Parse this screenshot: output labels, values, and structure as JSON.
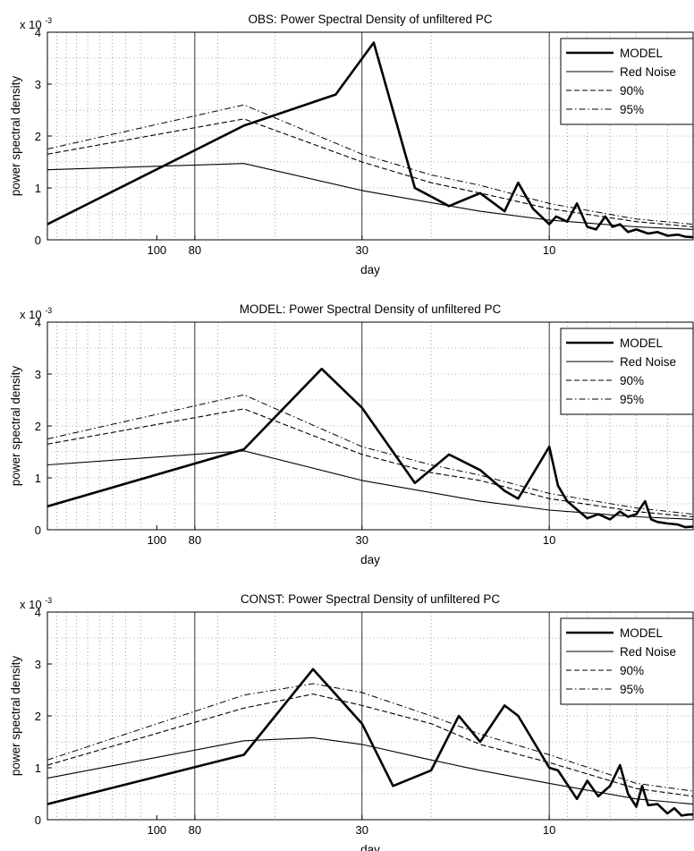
{
  "chart_data": [
    {
      "type": "line",
      "title": "OBS: Power Spectral Density of unfiltered PC",
      "xlabel": "day",
      "ylabel": "power spectral density",
      "y_multiplier": "x 10",
      "y_multiplier_exp": "-3",
      "x_scale": "log frequency (axis labeled in day)",
      "x_range_day": [
        190,
        4.3
      ],
      "ylim": [
        0,
        4
      ],
      "yticks": [
        "0",
        "1",
        "2",
        "3",
        "4"
      ],
      "xticks": [
        {
          "day": 100,
          "label": "100"
        },
        {
          "day": 80,
          "label": "80"
        },
        {
          "day": 30,
          "label": "30"
        },
        {
          "day": 10,
          "label": "10"
        }
      ],
      "grid": true,
      "legend": {
        "location": "top-right",
        "entries": [
          "MODEL",
          "Red Noise",
          "90%",
          "95%"
        ]
      },
      "series": [
        {
          "name": "MODEL",
          "style": "thick-solid",
          "x": [
            190,
            60,
            35,
            28,
            22,
            18,
            15,
            13,
            12,
            11,
            10,
            9.6,
            9,
            8.5,
            8,
            7.6,
            7.2,
            6.9,
            6.6,
            6.3,
            6,
            5.6,
            5.3,
            5,
            4.7,
            4.5,
            4.3
          ],
          "y": [
            0.3,
            2.2,
            2.8,
            3.8,
            1.0,
            0.65,
            0.9,
            0.55,
            1.1,
            0.6,
            0.3,
            0.45,
            0.35,
            0.7,
            0.25,
            0.2,
            0.45,
            0.25,
            0.3,
            0.15,
            0.2,
            0.12,
            0.15,
            0.08,
            0.1,
            0.06,
            0.05
          ]
        },
        {
          "name": "Red Noise",
          "style": "thin-solid",
          "x": [
            190,
            60,
            30,
            15,
            10,
            6,
            4.3
          ],
          "y": [
            1.35,
            1.47,
            0.95,
            0.55,
            0.38,
            0.25,
            0.2
          ]
        },
        {
          "name": "90%",
          "style": "dashed",
          "x": [
            190,
            60,
            30,
            20,
            15,
            10,
            6,
            4.3
          ],
          "y": [
            1.65,
            2.33,
            1.5,
            1.1,
            0.9,
            0.6,
            0.35,
            0.25
          ]
        },
        {
          "name": "95%",
          "style": "dash-dot",
          "x": [
            190,
            60,
            30,
            20,
            15,
            10,
            6,
            4.3
          ],
          "y": [
            1.75,
            2.6,
            1.65,
            1.25,
            1.05,
            0.7,
            0.4,
            0.3
          ]
        }
      ]
    },
    {
      "type": "line",
      "title": "MODEL: Power Spectral Density of unfiltered PC",
      "xlabel": "day",
      "ylabel": "power spectral density",
      "y_multiplier": "x 10",
      "y_multiplier_exp": "-3",
      "x_scale": "log frequency (axis labeled in day)",
      "x_range_day": [
        190,
        4.3
      ],
      "ylim": [
        0,
        4
      ],
      "yticks": [
        "0",
        "1",
        "2",
        "3",
        "4"
      ],
      "xticks": [
        {
          "day": 100,
          "label": "100"
        },
        {
          "day": 80,
          "label": "80"
        },
        {
          "day": 30,
          "label": "30"
        },
        {
          "day": 10,
          "label": "10"
        }
      ],
      "grid": true,
      "legend": {
        "location": "top-right",
        "entries": [
          "MODEL",
          "Red Noise",
          "90%",
          "95%"
        ]
      },
      "series": [
        {
          "name": "MODEL",
          "style": "thick-solid",
          "x": [
            190,
            60,
            38,
            30,
            22,
            18,
            15,
            13,
            12,
            10,
            9.5,
            9,
            8,
            7.5,
            7,
            6.6,
            6.3,
            6,
            5.7,
            5.5,
            5.3,
            5,
            4.7,
            4.5,
            4.3
          ],
          "y": [
            0.45,
            1.55,
            3.1,
            2.35,
            0.9,
            1.45,
            1.15,
            0.75,
            0.6,
            1.6,
            0.85,
            0.55,
            0.22,
            0.3,
            0.2,
            0.35,
            0.25,
            0.3,
            0.55,
            0.2,
            0.15,
            0.12,
            0.1,
            0.05,
            0.06
          ]
        },
        {
          "name": "Red Noise",
          "style": "thin-solid",
          "x": [
            190,
            60,
            30,
            15,
            10,
            6,
            4.3
          ],
          "y": [
            1.25,
            1.52,
            0.95,
            0.55,
            0.38,
            0.25,
            0.2
          ]
        },
        {
          "name": "90%",
          "style": "dashed",
          "x": [
            190,
            60,
            30,
            20,
            15,
            10,
            6,
            4.3
          ],
          "y": [
            1.65,
            2.33,
            1.45,
            1.1,
            0.95,
            0.6,
            0.35,
            0.25
          ]
        },
        {
          "name": "95%",
          "style": "dash-dot",
          "x": [
            190,
            60,
            30,
            20,
            15,
            10,
            6,
            4.3
          ],
          "y": [
            1.75,
            2.6,
            1.6,
            1.25,
            1.05,
            0.7,
            0.42,
            0.3
          ]
        }
      ]
    },
    {
      "type": "line",
      "title": "CONST: Power Spectral Density of unfiltered PC",
      "xlabel": "day",
      "ylabel": "power spectral density",
      "y_multiplier": "x 10",
      "y_multiplier_exp": "-3",
      "x_scale": "log frequency (axis labeled in day)",
      "x_range_day": [
        190,
        4.3
      ],
      "ylim": [
        0,
        4
      ],
      "yticks": [
        "0",
        "1",
        "2",
        "3",
        "4"
      ],
      "xticks": [
        {
          "day": 100,
          "label": "100"
        },
        {
          "day": 80,
          "label": "80"
        },
        {
          "day": 30,
          "label": "30"
        },
        {
          "day": 10,
          "label": "10"
        }
      ],
      "grid": true,
      "legend": {
        "location": "top-right",
        "entries": [
          "MODEL",
          "Red Noise",
          "90%",
          "95%"
        ]
      },
      "series": [
        {
          "name": "MODEL",
          "style": "thick-solid",
          "x": [
            190,
            60,
            40,
            30,
            25,
            20,
            17,
            15,
            13,
            12,
            10,
            9.5,
            8.5,
            8,
            7.5,
            7,
            6.6,
            6.3,
            6,
            5.8,
            5.6,
            5.3,
            5,
            4.8,
            4.6,
            4.4,
            4.3
          ],
          "y": [
            0.3,
            1.25,
            2.9,
            1.85,
            0.65,
            0.95,
            2.0,
            1.5,
            2.2,
            2.0,
            1.0,
            0.95,
            0.4,
            0.75,
            0.45,
            0.65,
            1.05,
            0.5,
            0.25,
            0.65,
            0.28,
            0.3,
            0.12,
            0.22,
            0.08,
            0.1,
            0.1
          ]
        },
        {
          "name": "Red Noise",
          "style": "thin-solid",
          "x": [
            190,
            60,
            40,
            30,
            20,
            15,
            10,
            6,
            4.3
          ],
          "y": [
            0.8,
            1.52,
            1.58,
            1.45,
            1.15,
            0.95,
            0.7,
            0.4,
            0.3
          ]
        },
        {
          "name": "90%",
          "style": "dashed",
          "x": [
            190,
            60,
            40,
            30,
            20,
            15,
            10,
            6,
            4.3
          ],
          "y": [
            1.05,
            2.15,
            2.42,
            2.2,
            1.85,
            1.45,
            1.1,
            0.6,
            0.45
          ]
        },
        {
          "name": "95%",
          "style": "dash-dot",
          "x": [
            190,
            60,
            40,
            30,
            20,
            15,
            10,
            6,
            4.3
          ],
          "y": [
            1.15,
            2.4,
            2.62,
            2.45,
            2.0,
            1.65,
            1.25,
            0.7,
            0.55
          ]
        }
      ]
    }
  ]
}
